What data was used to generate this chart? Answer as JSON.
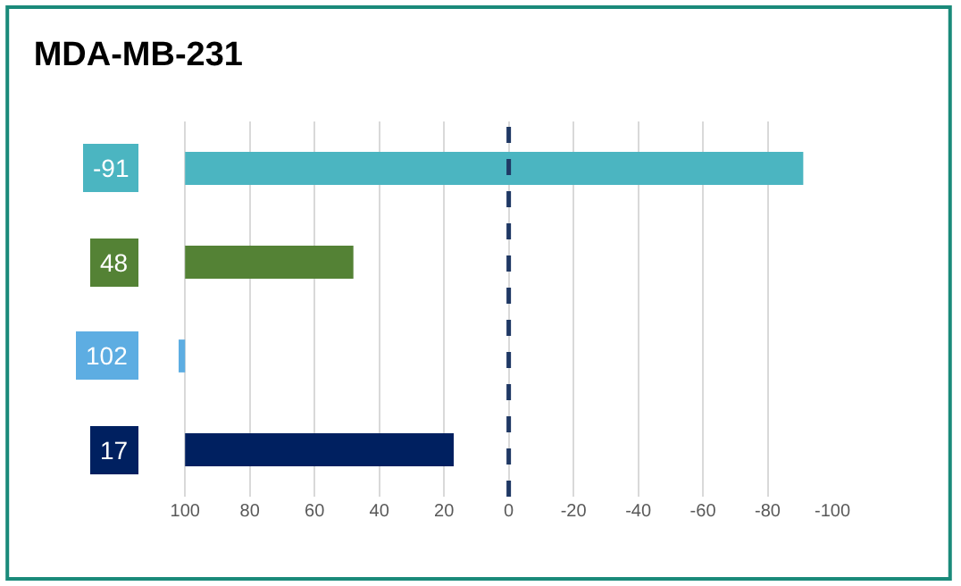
{
  "chart_data": {
    "type": "bar",
    "orientation": "horizontal",
    "title": "MDA-MB-231",
    "categories": [
      "-91",
      "48",
      "102",
      "17"
    ],
    "base": [
      100,
      100,
      100,
      100
    ],
    "values": [
      -191,
      -52,
      2,
      -83
    ],
    "colors": [
      "#4bb5c1",
      "#548235",
      "#5dade2",
      "#002060"
    ],
    "xlim": [
      102,
      -100
    ],
    "xticks": [
      100,
      80,
      60,
      40,
      20,
      0,
      -20,
      -40,
      -60,
      -80,
      -100
    ],
    "ref_lines": [
      {
        "axis": "x",
        "value": 0,
        "color": "#1f3864",
        "line_style": "dashed"
      }
    ],
    "grid": "x",
    "tick_labels": "x"
  }
}
